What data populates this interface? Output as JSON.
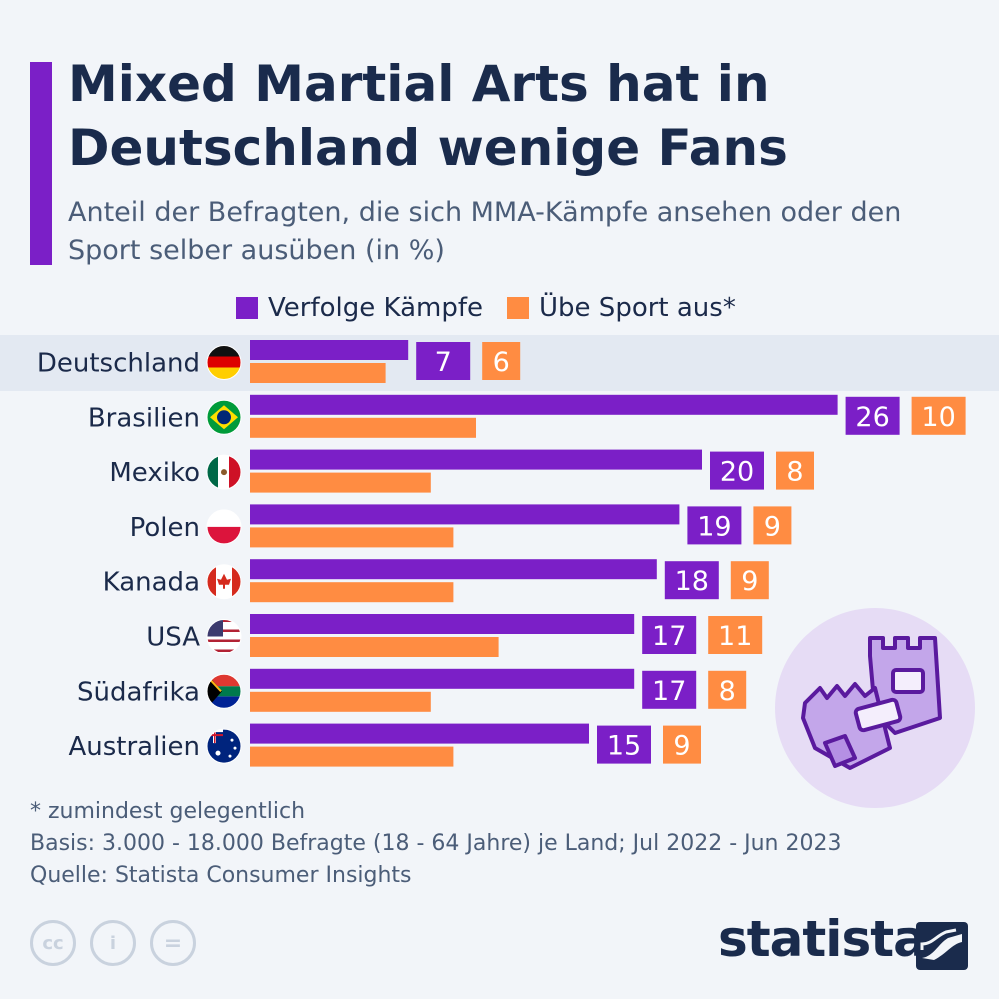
{
  "header": {
    "title": "Mixed Martial Arts hat in Deutschland wenige Fans",
    "subtitle": "Anteil der Befragten, die sich MMA-Kämpfe ansehen oder den Sport selber ausüben (in %)"
  },
  "colors": {
    "accent": "#7b1fc7",
    "series1": "#7b1fc7",
    "series2": "#ff8c42",
    "highlight_row": "#e3e9f2"
  },
  "chart_data": {
    "type": "bar",
    "orientation": "horizontal",
    "categories": [
      "Deutschland",
      "Brasilien",
      "Mexiko",
      "Polen",
      "Kanada",
      "USA",
      "Südafrika",
      "Australien"
    ],
    "flags": [
      "flag-germany-icon",
      "flag-brazil-icon",
      "flag-mexico-icon",
      "flag-poland-icon",
      "flag-canada-icon",
      "flag-usa-icon",
      "flag-south-africa-icon",
      "flag-australia-icon"
    ],
    "series": [
      {
        "name": "Verfolge Kämpfe",
        "values": [
          7,
          26,
          20,
          19,
          18,
          17,
          17,
          15
        ],
        "color": "#7b1fc7"
      },
      {
        "name": "Übe Sport aus*",
        "values": [
          6,
          10,
          8,
          9,
          9,
          11,
          8,
          9
        ],
        "color": "#ff8c42"
      }
    ],
    "xlim": [
      0,
      26
    ],
    "highlighted_category": "Deutschland",
    "legend_position": "top"
  },
  "footnotes": {
    "note": "* zumindest gelegentlich",
    "basis": "Basis: 3.000 - 18.000 Befragte (18 - 64 Jahre) je Land; Jul 2022 - Jun 2023",
    "source": "Quelle: Statista Consumer Insights"
  },
  "license_icons": [
    "cc-icon",
    "attribution-icon",
    "no-derivatives-icon"
  ],
  "license_labels": [
    "cc",
    "=",
    "i"
  ],
  "brand": {
    "name": "statista"
  }
}
